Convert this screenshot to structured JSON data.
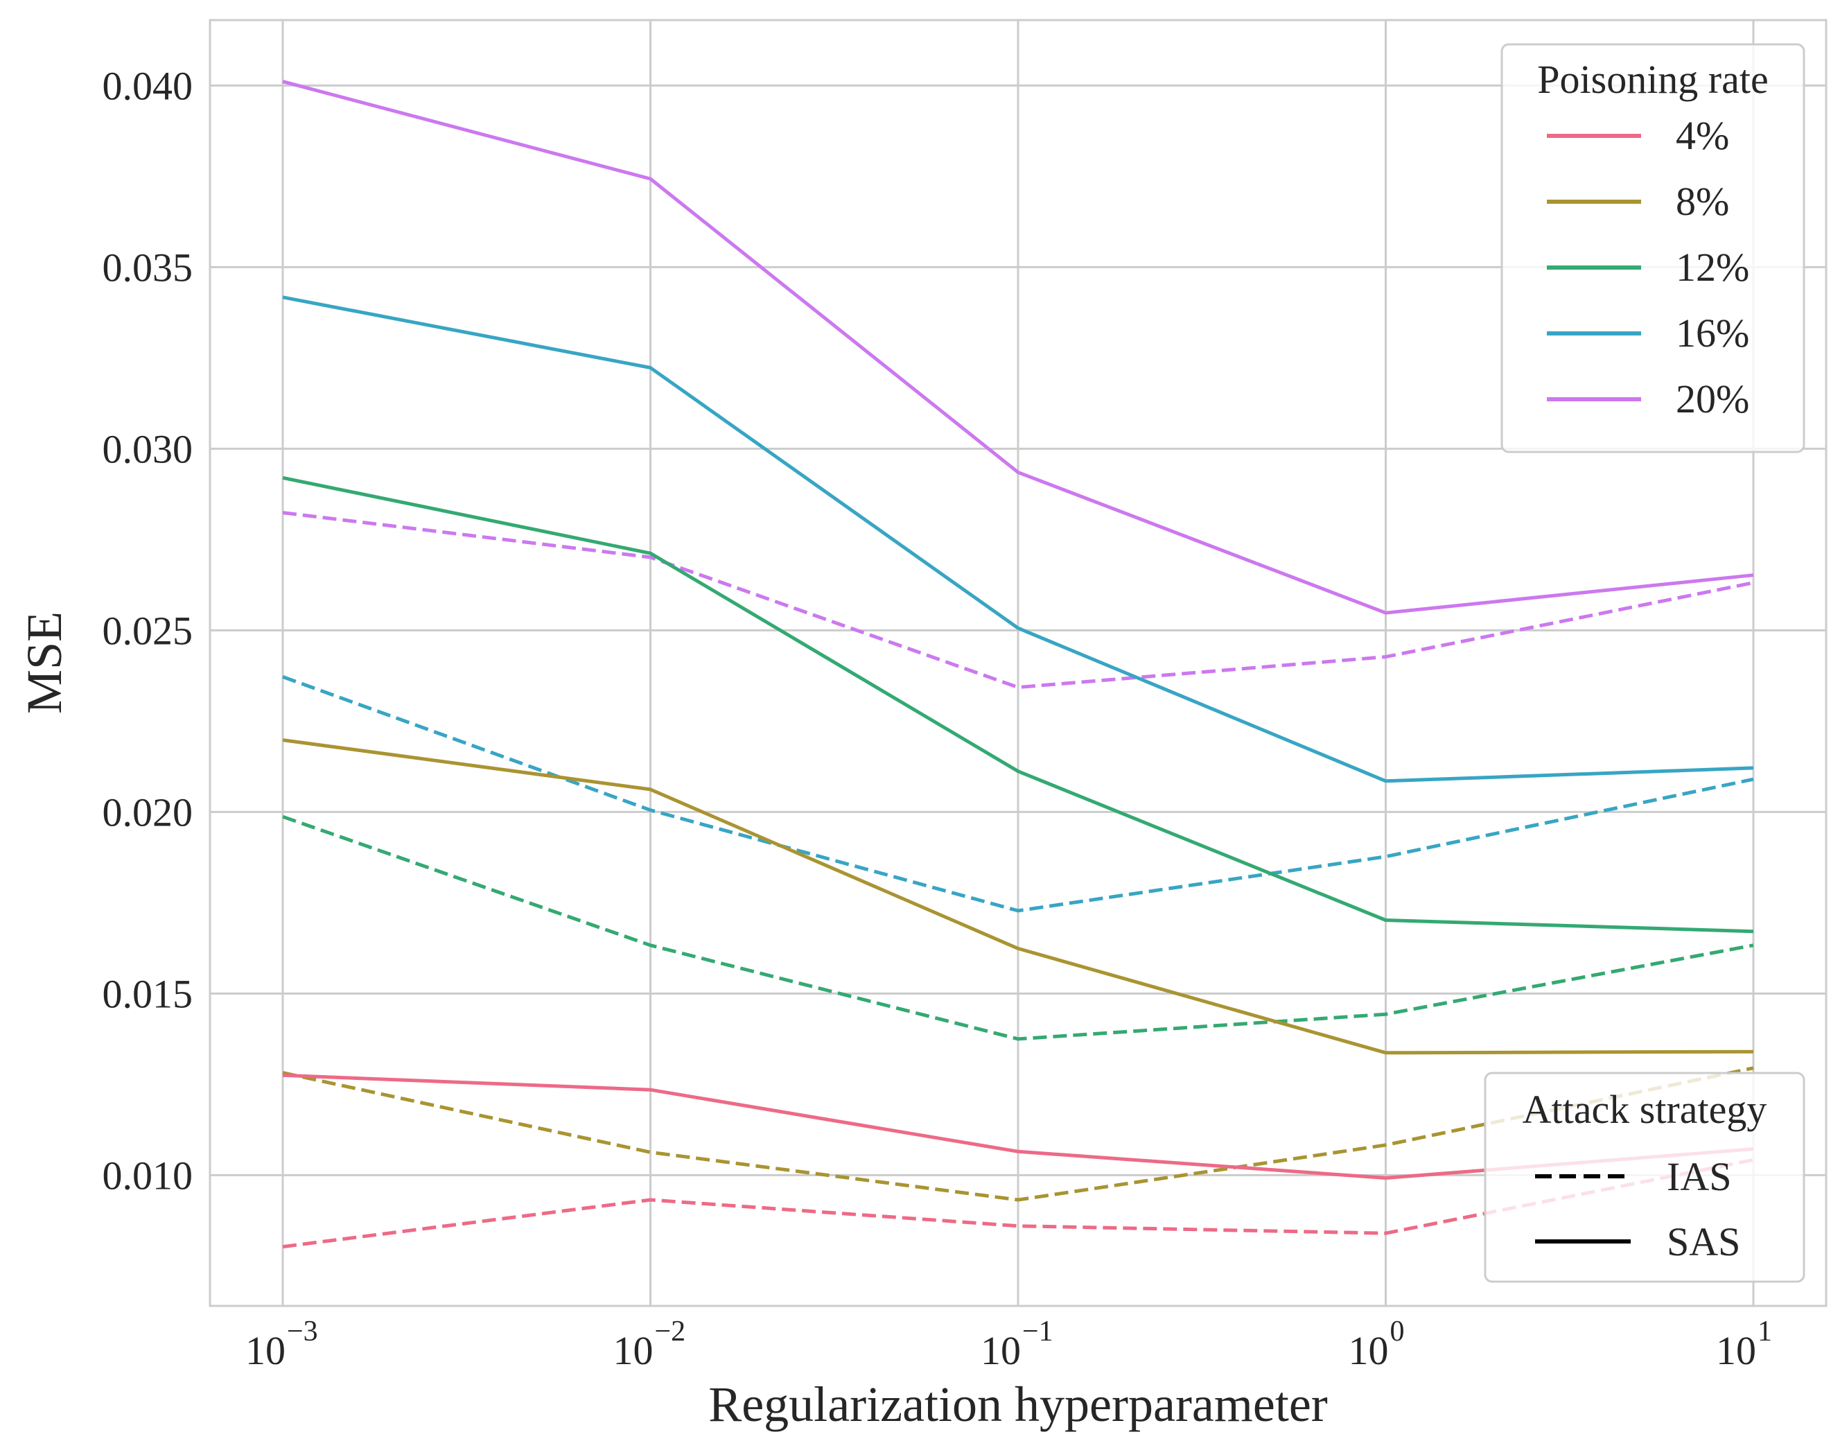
{
  "chart_data": {
    "type": "line",
    "title": "",
    "xlabel": "Regularization hyperparameter",
    "ylabel": "MSE",
    "xscale": "log",
    "x": [
      0.001,
      0.01,
      0.1,
      1,
      10
    ],
    "x_tick_labels": [
      {
        "base": "10",
        "exp": "−3"
      },
      {
        "base": "10",
        "exp": "−2"
      },
      {
        "base": "10",
        "exp": "−1"
      },
      {
        "base": "10",
        "exp": "0"
      },
      {
        "base": "10",
        "exp": "1"
      }
    ],
    "y_ticks": [
      0.01,
      0.015,
      0.02,
      0.025,
      0.03,
      0.035,
      0.04
    ],
    "y_tick_labels": [
      "0.010",
      "0.015",
      "0.020",
      "0.025",
      "0.030",
      "0.035",
      "0.040"
    ],
    "ylim": [
      0.0064,
      0.0418
    ],
    "grid": true,
    "legend_poisoning": {
      "title": "Poisoning rate",
      "placement": "top-right",
      "entries": [
        {
          "label": "4%",
          "color": "#ed6a86"
        },
        {
          "label": "8%",
          "color": "#a99432"
        },
        {
          "label": "12%",
          "color": "#34a972"
        },
        {
          "label": "16%",
          "color": "#38a5c4"
        },
        {
          "label": "20%",
          "color": "#cc78ef"
        }
      ]
    },
    "legend_strategy": {
      "title": "Attack strategy",
      "placement": "bottom-right",
      "entries": [
        {
          "label": "IAS",
          "style": "dashed"
        },
        {
          "label": "SAS",
          "style": "solid"
        }
      ]
    },
    "series": [
      {
        "rate": "4%",
        "strategy": "SAS",
        "color": "#ed6a86",
        "style": "solid",
        "values": [
          0.01275,
          0.01235,
          0.01065,
          0.00992,
          0.01072
        ]
      },
      {
        "rate": "4%",
        "strategy": "IAS",
        "color": "#ed6a86",
        "style": "dashed",
        "values": [
          0.00803,
          0.00932,
          0.0086,
          0.0084,
          0.01042
        ]
      },
      {
        "rate": "8%",
        "strategy": "SAS",
        "color": "#a99432",
        "style": "solid",
        "values": [
          0.02198,
          0.02062,
          0.01624,
          0.01337,
          0.0134
        ]
      },
      {
        "rate": "8%",
        "strategy": "IAS",
        "color": "#a99432",
        "style": "dashed",
        "values": [
          0.01282,
          0.01063,
          0.00932,
          0.01083,
          0.01295
        ]
      },
      {
        "rate": "12%",
        "strategy": "SAS",
        "color": "#34a972",
        "style": "solid",
        "values": [
          0.0292,
          0.02712,
          0.02112,
          0.01702,
          0.01671
        ]
      },
      {
        "rate": "12%",
        "strategy": "IAS",
        "color": "#34a972",
        "style": "dashed",
        "values": [
          0.01987,
          0.01633,
          0.01375,
          0.01443,
          0.01633
        ]
      },
      {
        "rate": "16%",
        "strategy": "SAS",
        "color": "#38a5c4",
        "style": "solid",
        "values": [
          0.03417,
          0.03223,
          0.02506,
          0.02085,
          0.02121
        ]
      },
      {
        "rate": "16%",
        "strategy": "IAS",
        "color": "#38a5c4",
        "style": "dashed",
        "values": [
          0.02372,
          0.02005,
          0.01728,
          0.01877,
          0.0209
        ]
      },
      {
        "rate": "20%",
        "strategy": "SAS",
        "color": "#cc78ef",
        "style": "solid",
        "values": [
          0.04011,
          0.03743,
          0.02935,
          0.02548,
          0.02652
        ]
      },
      {
        "rate": "20%",
        "strategy": "IAS",
        "color": "#cc78ef",
        "style": "dashed",
        "values": [
          0.02824,
          0.02701,
          0.02343,
          0.02427,
          0.02631
        ]
      }
    ]
  }
}
